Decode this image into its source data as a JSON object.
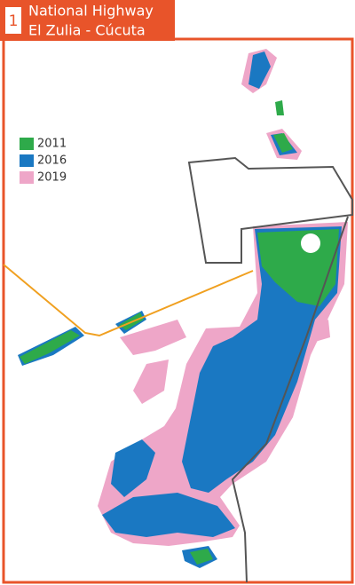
{
  "header": {
    "badge": "1",
    "title_line1": "National Highway",
    "title_line2": "El Zulia - Cúcuta"
  },
  "legend": [
    {
      "label": "2011",
      "color": "#2eaa4a"
    },
    {
      "label": "2016",
      "color": "#1a78c2"
    },
    {
      "label": "2019",
      "color": "#eea6c8"
    }
  ]
}
